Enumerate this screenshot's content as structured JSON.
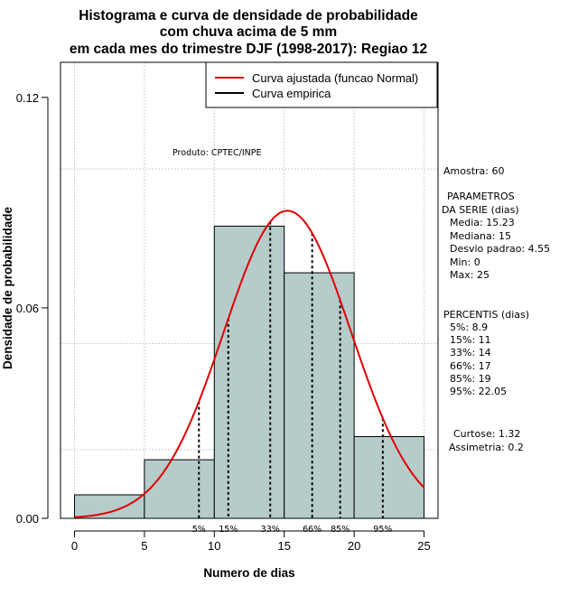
{
  "chart_data": {
    "type": "histogram",
    "title": [
      "Histograma e curva de densidade de probabilidade",
      "com chuva acima de 5 mm",
      "em cada mes do trimestre DJF (1998-2017): Regiao 12"
    ],
    "xlabel": "Numero de dias",
    "ylabel": "Densidade de probabilidade",
    "xlim": [
      -1,
      26
    ],
    "ylim": [
      0,
      0.13
    ],
    "x_ticks": [
      0,
      5,
      10,
      15,
      20,
      25
    ],
    "y_ticks": [
      0.0,
      0.06,
      0.12
    ],
    "x_tick_labels": [
      "0",
      "5",
      "10",
      "15",
      "20",
      "25"
    ],
    "y_tick_labels": [
      "0.00",
      "0.06",
      "0.12"
    ],
    "grid": true,
    "grid_x": [
      0,
      5,
      10,
      15,
      20,
      25
    ],
    "grid_y": [
      0.0,
      0.0196,
      0.0498,
      0.0996
    ],
    "bar_color": "#b5cccb",
    "curve_color": "#e00000",
    "bins": [
      {
        "from": 0,
        "to": 5,
        "density": 0.0067
      },
      {
        "from": 5,
        "to": 10,
        "density": 0.0167
      },
      {
        "from": 10,
        "to": 15,
        "density": 0.0833
      },
      {
        "from": 15,
        "to": 20,
        "density": 0.07
      },
      {
        "from": 20,
        "to": 25,
        "density": 0.0233
      }
    ],
    "normal_fit": {
      "mean": 15.23,
      "sd": 4.55,
      "x_range": [
        0,
        25
      ]
    },
    "percentile_markers": [
      {
        "label": "5%",
        "value": 8.9
      },
      {
        "label": "15%",
        "value": 11
      },
      {
        "label": "33%",
        "value": 14
      },
      {
        "label": "66%",
        "value": 17
      },
      {
        "label": "85%",
        "value": 19
      },
      {
        "label": "95%",
        "value": 22.05
      }
    ],
    "legend": {
      "position": "top-right",
      "entries": [
        {
          "label": "Curva ajustada (funcao Normal)",
          "color": "#e00000"
        },
        {
          "label": "Curva empirica",
          "color": "#000000"
        }
      ]
    },
    "annotation": "Produto: CPTEC/INPE"
  },
  "side_panel": {
    "amostra": "Amostra: 60",
    "param_header_1": "PARAMETROS",
    "param_header_2": "DA SERIE (dias)",
    "params": [
      "Media: 15.23",
      "Mediana: 15",
      "Desvio padrao: 4.55",
      "Min: 0",
      "Max: 25"
    ],
    "percent_header": "PERCENTIS (dias)",
    "percentiles": [
      "5%: 8.9",
      "15%: 11",
      "33%: 14",
      "66%: 17",
      "85%: 19",
      "95%: 22.05"
    ],
    "curtose": "Curtose: 1.32",
    "assimetria": "Assimetria: 0.2"
  }
}
